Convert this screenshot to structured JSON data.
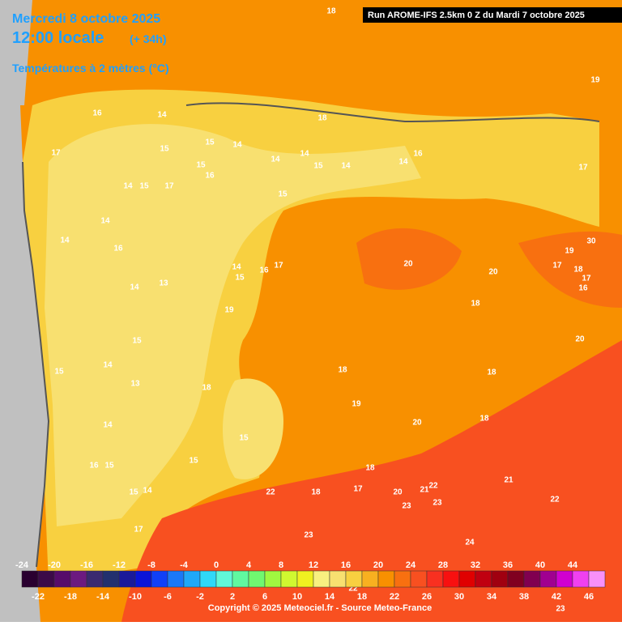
{
  "header": {
    "date": "Mercredi 8 octobre 2025",
    "time": "12:00 locale",
    "lead": "(+ 34h)",
    "field": "Températures à 2 mètres (°C)",
    "run": "Run AROME-IFS 2.5km 0 Z du Mardi 7 octobre 2025"
  },
  "map": {
    "labels": [
      18,
      19,
      16,
      14,
      18,
      17,
      15,
      15,
      14,
      15,
      14,
      14,
      15,
      14,
      16,
      14,
      17,
      14,
      15,
      17,
      16,
      15,
      14,
      14,
      16,
      20,
      20,
      30,
      19,
      17,
      18,
      17,
      16,
      14,
      16,
      17,
      15,
      14,
      13,
      19,
      18,
      20,
      15,
      15,
      14,
      18,
      18,
      13,
      18,
      19,
      18,
      20,
      14,
      15,
      16,
      15,
      15,
      18,
      21,
      15,
      14,
      22,
      18,
      17,
      20,
      21,
      22,
      23,
      23,
      22,
      17,
      23,
      24,
      22,
      23
    ]
  },
  "legend": {
    "top_labels": [
      -24,
      -20,
      -16,
      -12,
      -8,
      -4,
      0,
      4,
      8,
      12,
      16,
      20,
      24,
      28,
      32,
      36,
      40,
      44
    ],
    "bottom_labels": [
      -22,
      -18,
      -14,
      -10,
      -6,
      -2,
      2,
      6,
      10,
      14,
      18,
      22,
      26,
      30,
      34,
      38,
      42,
      46
    ],
    "colors": [
      "#2a0030",
      "#3c0a48",
      "#560c6a",
      "#6c1a80",
      "#3a2a70",
      "#22306e",
      "#1a1a9a",
      "#0a14d8",
      "#1040f8",
      "#1a78f8",
      "#20a8f8",
      "#30d8f8",
      "#60f8d8",
      "#60f8a0",
      "#70f870",
      "#a0f840",
      "#d0f830",
      "#f0f020",
      "#f8f080",
      "#f8e070",
      "#f8d040",
      "#f8b020",
      "#f89000",
      "#f87010",
      "#f85020",
      "#f83020",
      "#f81010",
      "#e00000",
      "#c00010",
      "#a00010",
      "#800020",
      "#800050",
      "#a00090",
      "#d000d0",
      "#f040f0",
      "#f890f8"
    ]
  },
  "footer": {
    "copyright": "Copyright © 2025 Meteociel.fr - Source Meteo-France"
  }
}
